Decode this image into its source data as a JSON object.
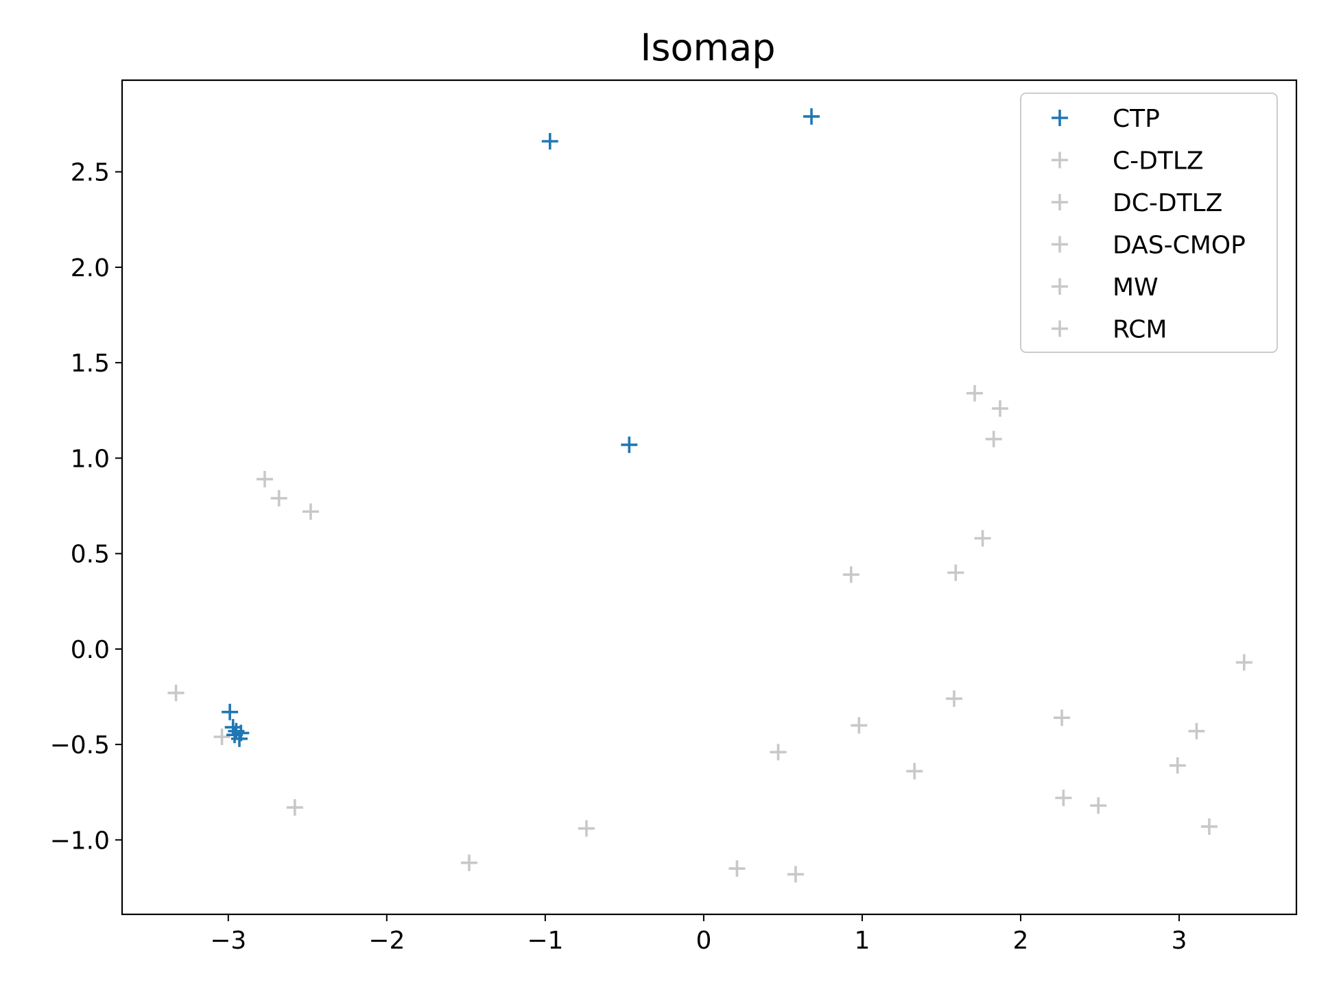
{
  "chart_data": {
    "type": "scatter",
    "title": "Isomap",
    "xlabel": "",
    "ylabel": "",
    "xlim": [
      -3.67,
      3.74
    ],
    "ylim": [
      -1.39,
      2.98
    ],
    "x_ticks": [
      -3,
      -2,
      -1,
      0,
      1,
      2,
      3
    ],
    "x_tick_labels": [
      "−3",
      "−2",
      "−1",
      "0",
      "1",
      "2",
      "3"
    ],
    "y_ticks": [
      -1.0,
      -0.5,
      0.0,
      0.5,
      1.0,
      1.5,
      2.0,
      2.5
    ],
    "y_tick_labels": [
      "−1.0",
      "−0.5",
      "0.0",
      "0.5",
      "1.0",
      "1.5",
      "2.0",
      "2.5"
    ],
    "grid": false,
    "legend_position": "top-right",
    "marker": "+",
    "series": [
      {
        "name": "CTP",
        "color": "#1f77b4",
        "points": [
          [
            -0.97,
            2.66
          ],
          [
            0.68,
            2.79
          ],
          [
            -0.47,
            1.07
          ],
          [
            -2.99,
            -0.33
          ],
          [
            -2.97,
            -0.41
          ],
          [
            -2.95,
            -0.43
          ],
          [
            -2.92,
            -0.44
          ],
          [
            -2.96,
            -0.45
          ],
          [
            -2.93,
            -0.47
          ]
        ]
      },
      {
        "name": "C-DTLZ",
        "color": "#c8c8c8",
        "points": [
          [
            -2.77,
            0.89
          ],
          [
            -2.68,
            0.79
          ],
          [
            -2.48,
            0.72
          ],
          [
            -3.33,
            -0.23
          ]
        ]
      },
      {
        "name": "DC-DTLZ",
        "color": "#c8c8c8",
        "points": [
          [
            -3.04,
            -0.46
          ],
          [
            -2.58,
            -0.83
          ],
          [
            -1.48,
            -1.12
          ],
          [
            -0.74,
            -0.94
          ]
        ]
      },
      {
        "name": "DAS-CMOP",
        "color": "#c8c8c8",
        "points": [
          [
            1.71,
            1.34
          ],
          [
            1.87,
            1.26
          ],
          [
            1.83,
            1.1
          ],
          [
            1.76,
            0.58
          ],
          [
            1.59,
            0.4
          ],
          [
            0.93,
            0.39
          ]
        ]
      },
      {
        "name": "MW",
        "color": "#c8c8c8",
        "points": [
          [
            0.21,
            -1.15
          ],
          [
            0.58,
            -1.18
          ],
          [
            0.47,
            -0.54
          ],
          [
            0.98,
            -0.4
          ],
          [
            1.33,
            -0.64
          ],
          [
            1.58,
            -0.26
          ]
        ]
      },
      {
        "name": "RCM",
        "color": "#c8c8c8",
        "points": [
          [
            2.26,
            -0.36
          ],
          [
            2.27,
            -0.78
          ],
          [
            2.49,
            -0.82
          ],
          [
            2.99,
            -0.61
          ],
          [
            3.11,
            -0.43
          ],
          [
            3.19,
            -0.93
          ],
          [
            3.41,
            -0.07
          ]
        ]
      }
    ]
  }
}
